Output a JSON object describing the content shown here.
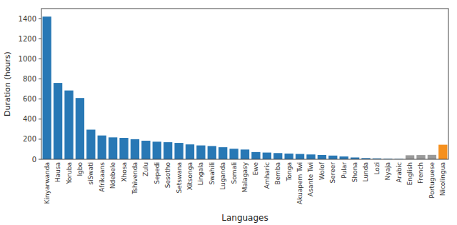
{
  "chart_data": {
    "type": "bar",
    "categories": [
      "Kinyarwanda",
      "Hausa",
      "Yoruba",
      "Igbo",
      "siSwati",
      "Afrikaans",
      "Ndebele",
      "Xhosa",
      "Tshivenda",
      "Zulu",
      "Sepedi",
      "Sesotho",
      "Setswana",
      "Xitsonga",
      "Lingala",
      "Swahili",
      "Luganda",
      "Somali",
      "Malagasy",
      "Ewe",
      "Amharic",
      "Bemba",
      "Tonga",
      "Akuapem Twi",
      "Asante Twi",
      "Wolof",
      "Sereer",
      "Pular",
      "Shona",
      "Lunda",
      "Lozi",
      "Nyaja",
      "Arabic",
      "English",
      "French",
      "Portuguese",
      "Nicolingua"
    ],
    "values": [
      1420,
      760,
      685,
      610,
      295,
      237,
      218,
      213,
      200,
      185,
      175,
      170,
      163,
      148,
      138,
      132,
      120,
      105,
      97,
      72,
      67,
      62,
      57,
      53,
      48,
      43,
      37,
      28,
      18,
      12,
      9,
      6,
      4,
      40,
      42,
      44,
      145
    ],
    "colors": [
      "#2878b5",
      "#2878b5",
      "#2878b5",
      "#2878b5",
      "#2878b5",
      "#2878b5",
      "#2878b5",
      "#2878b5",
      "#2878b5",
      "#2878b5",
      "#2878b5",
      "#2878b5",
      "#2878b5",
      "#2878b5",
      "#2878b5",
      "#2878b5",
      "#2878b5",
      "#2878b5",
      "#2878b5",
      "#2878b5",
      "#2878b5",
      "#2878b5",
      "#2878b5",
      "#2878b5",
      "#2878b5",
      "#2878b5",
      "#2878b5",
      "#2878b5",
      "#2878b5",
      "#2878b5",
      "#2878b5",
      "#2878b5",
      "#2878b5",
      "#9a9a9a",
      "#9a9a9a",
      "#9a9a9a",
      "#f5901e"
    ],
    "xlabel": "Languages",
    "ylabel": "Duration (hours)",
    "ylim": [
      0,
      1500
    ],
    "yticks": [
      0,
      200,
      400,
      600,
      800,
      1000,
      1200,
      1400
    ],
    "grid": false
  }
}
